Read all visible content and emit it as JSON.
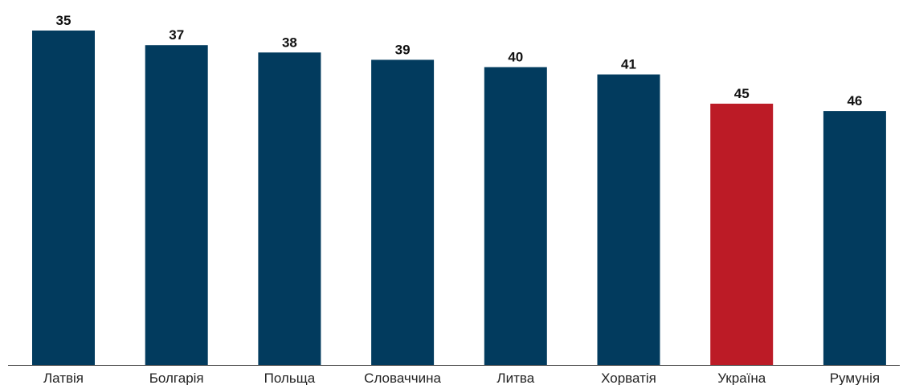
{
  "chart_data": {
    "type": "bar",
    "title": "",
    "xlabel": "",
    "ylabel": "",
    "categories": [
      "Латвія",
      "Болгарія",
      "Польща",
      "Словаччина",
      "Литва",
      "Хорватія",
      "Україна",
      "Румунія"
    ],
    "values": [
      35,
      37,
      38,
      39,
      40,
      41,
      45,
      46
    ],
    "highlight_category": "Україна",
    "grid": false,
    "colors": {
      "default_bar": "#023B5E",
      "highlight_bar": "#BC1B26"
    }
  }
}
